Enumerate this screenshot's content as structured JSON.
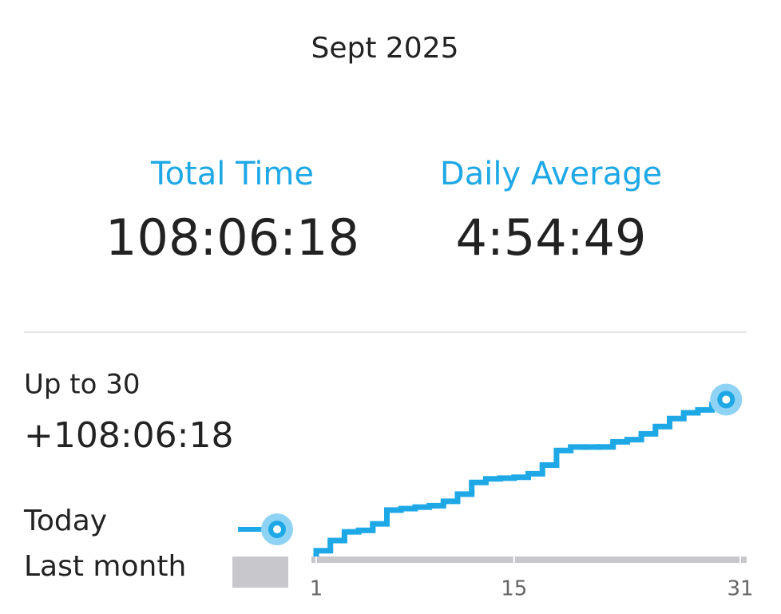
{
  "header": {
    "title": "Sept 2025"
  },
  "stats": {
    "total_label": "Total Time",
    "total_value": "108:06:18",
    "average_label": "Daily Average",
    "average_value": "4:54:49"
  },
  "summary": {
    "label": "Up to 30",
    "value": "+108:06:18"
  },
  "legend": {
    "last_month": "Last month"
  },
  "chart_data": {
    "type": "step",
    "x": [
      1,
      2,
      3,
      4,
      5,
      6,
      7,
      8,
      9,
      10,
      11,
      12,
      13,
      14,
      15,
      16,
      17,
      18,
      19,
      20,
      21,
      22,
      23,
      24,
      25,
      26,
      27,
      28,
      29,
      30
    ],
    "series": [
      {
        "name": "Today",
        "color": "#1ea8e6",
        "values": [
          4,
          11,
          17,
          18,
          22.5,
          32,
          33,
          34,
          35,
          38,
          43,
          51,
          53.5,
          54,
          54.6,
          57,
          63,
          73,
          75.4,
          75.4,
          75.5,
          79,
          80.5,
          84.5,
          89.5,
          95,
          99,
          101,
          104.7,
          108.1
        ]
      }
    ],
    "xlim": [
      1,
      31
    ],
    "xticks": [
      1,
      15,
      31
    ],
    "ylim": [
      0,
      110
    ]
  }
}
